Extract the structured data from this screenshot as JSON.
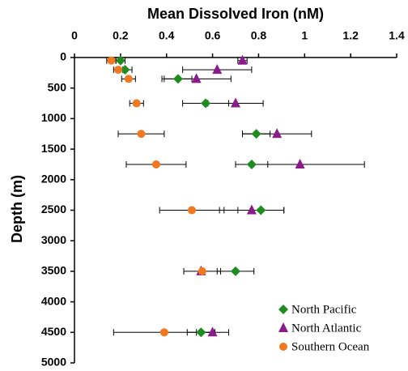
{
  "chart_data": {
    "type": "scatter",
    "title": "Mean Dissolved Iron (nM)",
    "y_label": "Depth (m)",
    "xlim": [
      0,
      1.4
    ],
    "xticks": [
      0,
      0.2,
      0.4,
      0.6,
      0.8,
      1,
      1.2,
      1.4
    ],
    "ylim": [
      0,
      5000
    ],
    "yticks": [
      0,
      500,
      1000,
      1500,
      2000,
      2500,
      3000,
      3500,
      4000,
      4500,
      5000
    ],
    "y_inverted": true,
    "x_axis_position": "top",
    "legend": "lower right",
    "series": [
      {
        "name": "North Pacific",
        "color": "#1e8c1e",
        "marker": "diamond",
        "x": [
          0.2,
          0.22,
          0.45,
          0.57,
          0.79,
          0.77,
          0.81,
          0.7,
          0.55
        ],
        "values": [
          50,
          200,
          350,
          750,
          1250,
          1750,
          2500,
          3500,
          4500
        ],
        "errors": [
          0.02,
          0.03,
          0.06,
          0.1,
          0.06,
          0.07,
          0.1,
          0.08,
          0.06
        ]
      },
      {
        "name": "North Atlantic",
        "color": "#8b1a8b",
        "marker": "triangle",
        "x": [
          0.73,
          0.62,
          0.53,
          0.7,
          0.88,
          0.98,
          0.77,
          0.55,
          0.6
        ],
        "values": [
          50,
          200,
          350,
          750,
          1250,
          1750,
          2500,
          3500,
          4500
        ],
        "errors": [
          0.02,
          0.15,
          0.15,
          0.12,
          0.15,
          0.28,
          0.14,
          null,
          0.07
        ]
      },
      {
        "name": "Southern Ocean",
        "color": "#f07820",
        "marker": "circle",
        "x": [
          0.16,
          0.19,
          0.235,
          0.27,
          0.29,
          0.355,
          0.51,
          0.555,
          0.39
        ],
        "values": [
          50,
          200,
          350,
          750,
          1250,
          1750,
          2500,
          3500,
          4500
        ],
        "errors": [
          0.02,
          0.02,
          0.03,
          0.03,
          0.1,
          0.13,
          0.14,
          0.08,
          0.22
        ]
      }
    ]
  }
}
